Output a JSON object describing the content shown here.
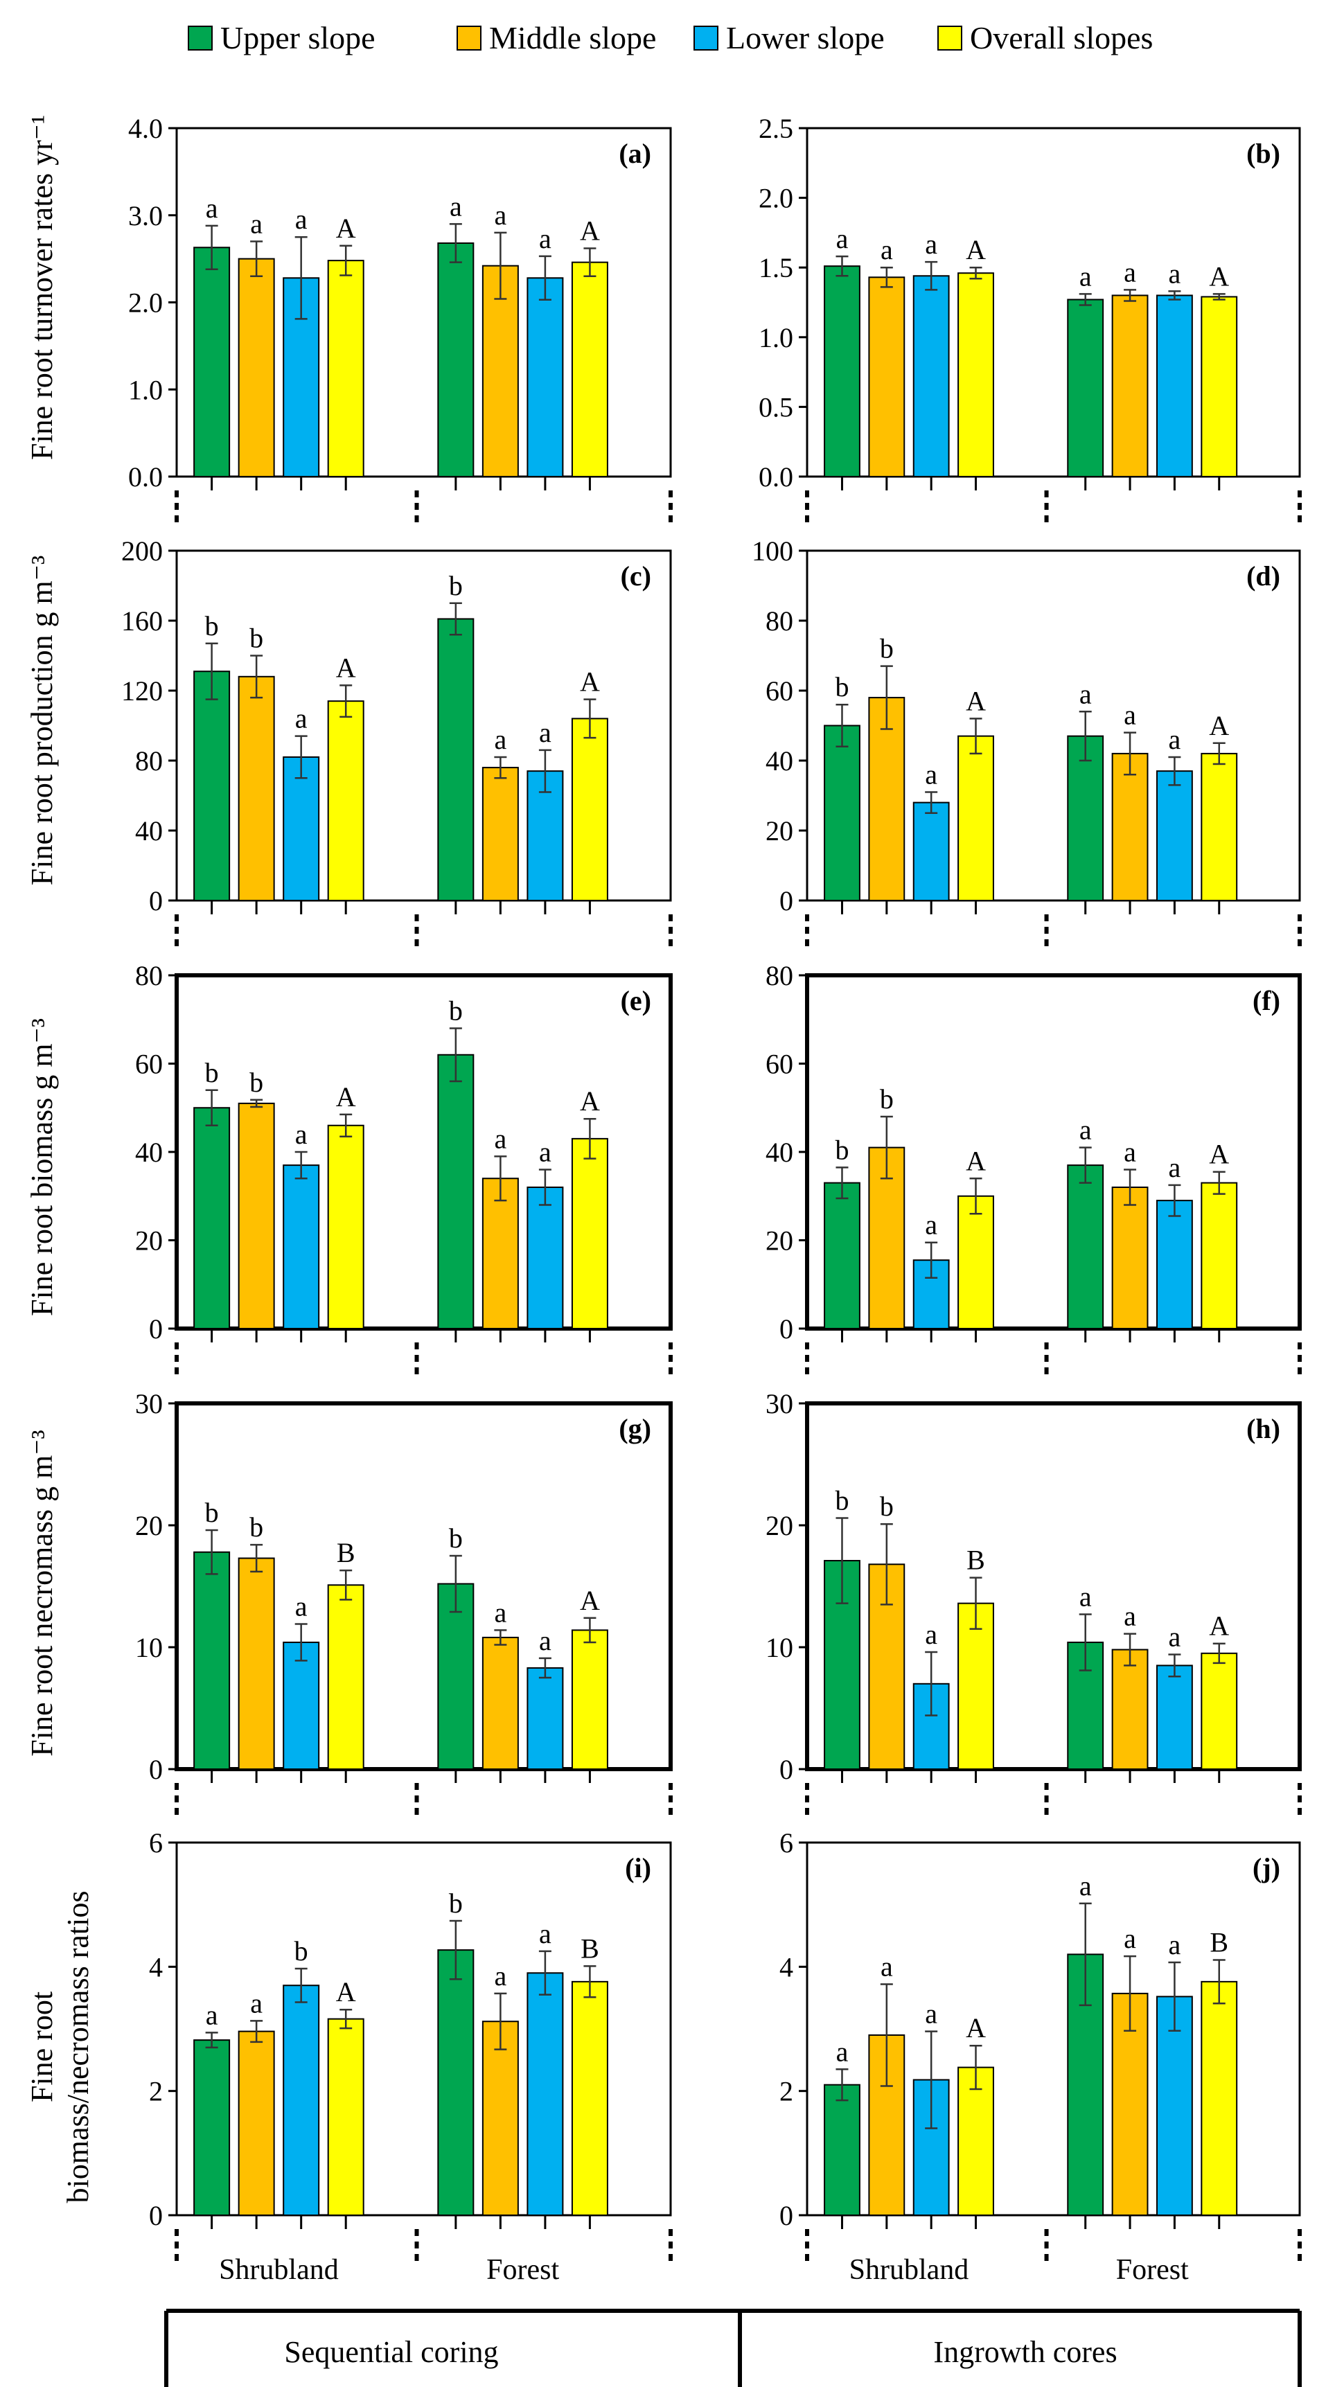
{
  "legend": [
    {
      "name": "Upper slope",
      "color": "#00a650"
    },
    {
      "name": "Middle slope",
      "color": "#ffc000"
    },
    {
      "name": "Lower slope",
      "color": "#00b0f0"
    },
    {
      "name": "Overall slopes",
      "color": "#ffff00"
    }
  ],
  "groups": [
    "Shrubland",
    "Forest"
  ],
  "methods": [
    "Sequential coring",
    "Ingrowth cores"
  ],
  "row_labels": [
    "Fine root turnover rates  yr⁻¹",
    "Fine root production  g m⁻³",
    "Fine root biomass  g m⁻³",
    "Fine root necromass  g m⁻³",
    "Fine root|biomass/necromass ratios"
  ],
  "chart_data": [
    {
      "type": "bar",
      "panel": "(a)",
      "method": "Sequential coring",
      "metric": "Fine root turnover rates (yr-1)",
      "categories": [
        "Shrubland",
        "Forest"
      ],
      "ylim": [
        0,
        4.0
      ],
      "yticks": [
        "0.0",
        "1.0",
        "2.0",
        "3.0",
        "4.0"
      ],
      "series": [
        {
          "name": "Upper slope",
          "values": [
            2.63,
            2.68
          ],
          "errors": [
            0.25,
            0.22
          ],
          "letters": [
            "a",
            "a"
          ]
        },
        {
          "name": "Middle slope",
          "values": [
            2.5,
            2.42
          ],
          "errors": [
            0.2,
            0.38
          ],
          "letters": [
            "a",
            "a"
          ]
        },
        {
          "name": "Lower slope",
          "values": [
            2.28,
            2.28
          ],
          "errors": [
            0.47,
            0.25
          ],
          "letters": [
            "a",
            "a"
          ]
        },
        {
          "name": "Overall slopes",
          "values": [
            2.48,
            2.46
          ],
          "errors": [
            0.17,
            0.16
          ],
          "letters": [
            "A",
            "A"
          ]
        }
      ]
    },
    {
      "type": "bar",
      "panel": "(b)",
      "method": "Ingrowth cores",
      "metric": "Fine root turnover rates (yr-1)",
      "categories": [
        "Shrubland",
        "Forest"
      ],
      "ylim": [
        0,
        2.5
      ],
      "yticks": [
        "0.0",
        "0.5",
        "1.0",
        "1.5",
        "2.0",
        "2.5"
      ],
      "series": [
        {
          "name": "Upper slope",
          "values": [
            1.51,
            1.27
          ],
          "errors": [
            0.07,
            0.04
          ],
          "letters": [
            "a",
            "a"
          ]
        },
        {
          "name": "Middle slope",
          "values": [
            1.43,
            1.3
          ],
          "errors": [
            0.07,
            0.04
          ],
          "letters": [
            "a",
            "a"
          ]
        },
        {
          "name": "Lower slope",
          "values": [
            1.44,
            1.3
          ],
          "errors": [
            0.1,
            0.03
          ],
          "letters": [
            "a",
            "a"
          ]
        },
        {
          "name": "Overall slopes",
          "values": [
            1.46,
            1.29
          ],
          "errors": [
            0.04,
            0.02
          ],
          "letters": [
            "A",
            "A"
          ]
        }
      ]
    },
    {
      "type": "bar",
      "panel": "(c)",
      "method": "Sequential coring",
      "metric": "Fine root production (g m-3)",
      "categories": [
        "Shrubland",
        "Forest"
      ],
      "ylim": [
        0,
        200
      ],
      "yticks": [
        "0",
        "40",
        "80",
        "120",
        "160",
        "200"
      ],
      "series": [
        {
          "name": "Upper slope",
          "values": [
            131,
            161
          ],
          "errors": [
            16,
            9
          ],
          "letters": [
            "b",
            "b"
          ]
        },
        {
          "name": "Middle slope",
          "values": [
            128,
            76
          ],
          "errors": [
            12,
            6
          ],
          "letters": [
            "b",
            "a"
          ]
        },
        {
          "name": "Lower slope",
          "values": [
            82,
            74
          ],
          "errors": [
            12,
            12
          ],
          "letters": [
            "a",
            "a"
          ]
        },
        {
          "name": "Overall slopes",
          "values": [
            114,
            104
          ],
          "errors": [
            9,
            11
          ],
          "letters": [
            "A",
            "A"
          ]
        }
      ]
    },
    {
      "type": "bar",
      "panel": "(d)",
      "method": "Ingrowth cores",
      "metric": "Fine root production (g m-3)",
      "categories": [
        "Shrubland",
        "Forest"
      ],
      "ylim": [
        0,
        100
      ],
      "yticks": [
        "0",
        "20",
        "40",
        "60",
        "80",
        "100"
      ],
      "series": [
        {
          "name": "Upper slope",
          "values": [
            50,
            47
          ],
          "errors": [
            6,
            7
          ],
          "letters": [
            "b",
            "a"
          ]
        },
        {
          "name": "Middle slope",
          "values": [
            58,
            42
          ],
          "errors": [
            9,
            6
          ],
          "letters": [
            "b",
            "a"
          ]
        },
        {
          "name": "Lower slope",
          "values": [
            28,
            37
          ],
          "errors": [
            3,
            4
          ],
          "letters": [
            "a",
            "a"
          ]
        },
        {
          "name": "Overall slopes",
          "values": [
            47,
            42
          ],
          "errors": [
            5,
            3
          ],
          "letters": [
            "A",
            "A"
          ]
        }
      ]
    },
    {
      "type": "bar",
      "panel": "(e)",
      "method": "Sequential coring",
      "metric": "Fine root biomass (g m-3)",
      "categories": [
        "Shrubland",
        "Forest"
      ],
      "ylim": [
        0,
        80
      ],
      "yticks": [
        "0",
        "20",
        "40",
        "60",
        "80"
      ],
      "series": [
        {
          "name": "Upper slope",
          "values": [
            50,
            62
          ],
          "errors": [
            4,
            6
          ],
          "letters": [
            "b",
            "b"
          ]
        },
        {
          "name": "Middle slope",
          "values": [
            51,
            34
          ],
          "errors": [
            0.8,
            5
          ],
          "letters": [
            "b",
            "a"
          ]
        },
        {
          "name": "Lower slope",
          "values": [
            37,
            32
          ],
          "errors": [
            3,
            4
          ],
          "letters": [
            "a",
            "a"
          ]
        },
        {
          "name": "Overall slopes",
          "values": [
            46,
            43
          ],
          "errors": [
            2.5,
            4.5
          ],
          "letters": [
            "A",
            "A"
          ]
        }
      ]
    },
    {
      "type": "bar",
      "panel": "(f)",
      "method": "Ingrowth cores",
      "metric": "Fine root biomass (g m-3)",
      "categories": [
        "Shrubland",
        "Forest"
      ],
      "ylim": [
        0,
        80
      ],
      "yticks": [
        "0",
        "20",
        "40",
        "60",
        "80"
      ],
      "series": [
        {
          "name": "Upper slope",
          "values": [
            33,
            37
          ],
          "errors": [
            3.5,
            4
          ],
          "letters": [
            "b",
            "a"
          ]
        },
        {
          "name": "Middle slope",
          "values": [
            41,
            32
          ],
          "errors": [
            7,
            4
          ],
          "letters": [
            "b",
            "a"
          ]
        },
        {
          "name": "Lower slope",
          "values": [
            15.5,
            29
          ],
          "errors": [
            4,
            3.5
          ],
          "letters": [
            "a",
            "a"
          ]
        },
        {
          "name": "Overall slopes",
          "values": [
            30,
            33
          ],
          "errors": [
            4,
            2.5
          ],
          "letters": [
            "A",
            "A"
          ]
        }
      ]
    },
    {
      "type": "bar",
      "panel": "(g)",
      "method": "Sequential coring",
      "metric": "Fine root necromass (g m-3)",
      "categories": [
        "Shrubland",
        "Forest"
      ],
      "ylim": [
        0,
        30
      ],
      "yticks": [
        "0",
        "10",
        "20",
        "30"
      ],
      "series": [
        {
          "name": "Upper slope",
          "values": [
            17.8,
            15.2
          ],
          "errors": [
            1.8,
            2.3
          ],
          "letters": [
            "b",
            "b"
          ]
        },
        {
          "name": "Middle slope",
          "values": [
            17.3,
            10.8
          ],
          "errors": [
            1.1,
            0.6
          ],
          "letters": [
            "b",
            "a"
          ]
        },
        {
          "name": "Lower slope",
          "values": [
            10.4,
            8.3
          ],
          "errors": [
            1.5,
            0.8
          ],
          "letters": [
            "a",
            "a"
          ]
        },
        {
          "name": "Overall slopes",
          "values": [
            15.1,
            11.4
          ],
          "errors": [
            1.2,
            1.0
          ],
          "letters": [
            "B",
            "A"
          ]
        }
      ]
    },
    {
      "type": "bar",
      "panel": "(h)",
      "method": "Ingrowth cores",
      "metric": "Fine root necromass (g m-3)",
      "categories": [
        "Shrubland",
        "Forest"
      ],
      "ylim": [
        0,
        30
      ],
      "yticks": [
        "0",
        "10",
        "20",
        "30"
      ],
      "series": [
        {
          "name": "Upper slope",
          "values": [
            17.1,
            10.4
          ],
          "errors": [
            3.5,
            2.3
          ],
          "letters": [
            "b",
            "a"
          ]
        },
        {
          "name": "Middle slope",
          "values": [
            16.8,
            9.8
          ],
          "errors": [
            3.3,
            1.3
          ],
          "letters": [
            "b",
            "a"
          ]
        },
        {
          "name": "Lower slope",
          "values": [
            7.0,
            8.5
          ],
          "errors": [
            2.6,
            0.9
          ],
          "letters": [
            "a",
            "a"
          ]
        },
        {
          "name": "Overall slopes",
          "values": [
            13.6,
            9.5
          ],
          "errors": [
            2.1,
            0.8
          ],
          "letters": [
            "B",
            "A"
          ]
        }
      ]
    },
    {
      "type": "bar",
      "panel": "(i)",
      "method": "Sequential coring",
      "metric": "Fine root biomass/necromass ratios",
      "categories": [
        "Shrubland",
        "Forest"
      ],
      "ylim": [
        0,
        6
      ],
      "yticks": [
        "0",
        "2",
        "4",
        "6"
      ],
      "series": [
        {
          "name": "Upper slope",
          "values": [
            2.82,
            4.27
          ],
          "errors": [
            0.12,
            0.47
          ],
          "letters": [
            "a",
            "b"
          ]
        },
        {
          "name": "Middle slope",
          "values": [
            2.96,
            3.12
          ],
          "errors": [
            0.17,
            0.45
          ],
          "letters": [
            "a",
            "a"
          ]
        },
        {
          "name": "Lower slope",
          "values": [
            3.7,
            3.9
          ],
          "errors": [
            0.27,
            0.35
          ],
          "letters": [
            "b",
            "a"
          ]
        },
        {
          "name": "Overall slopes",
          "values": [
            3.16,
            3.76
          ],
          "errors": [
            0.15,
            0.25
          ],
          "letters": [
            "A",
            "B"
          ]
        }
      ]
    },
    {
      "type": "bar",
      "panel": "(j)",
      "method": "Ingrowth cores",
      "metric": "Fine root biomass/necromass ratios",
      "categories": [
        "Shrubland",
        "Forest"
      ],
      "ylim": [
        0,
        6
      ],
      "yticks": [
        "0",
        "2",
        "4",
        "6"
      ],
      "series": [
        {
          "name": "Upper slope",
          "values": [
            2.1,
            4.2
          ],
          "errors": [
            0.25,
            0.82
          ],
          "letters": [
            "a",
            "a"
          ]
        },
        {
          "name": "Middle slope",
          "values": [
            2.9,
            3.57
          ],
          "errors": [
            0.82,
            0.6
          ],
          "letters": [
            "a",
            "a"
          ]
        },
        {
          "name": "Lower slope",
          "values": [
            2.18,
            3.52
          ],
          "errors": [
            0.78,
            0.55
          ],
          "letters": [
            "a",
            "a"
          ]
        },
        {
          "name": "Overall slopes",
          "values": [
            2.38,
            3.76
          ],
          "errors": [
            0.35,
            0.35
          ],
          "letters": [
            "A",
            "B"
          ]
        }
      ]
    }
  ]
}
